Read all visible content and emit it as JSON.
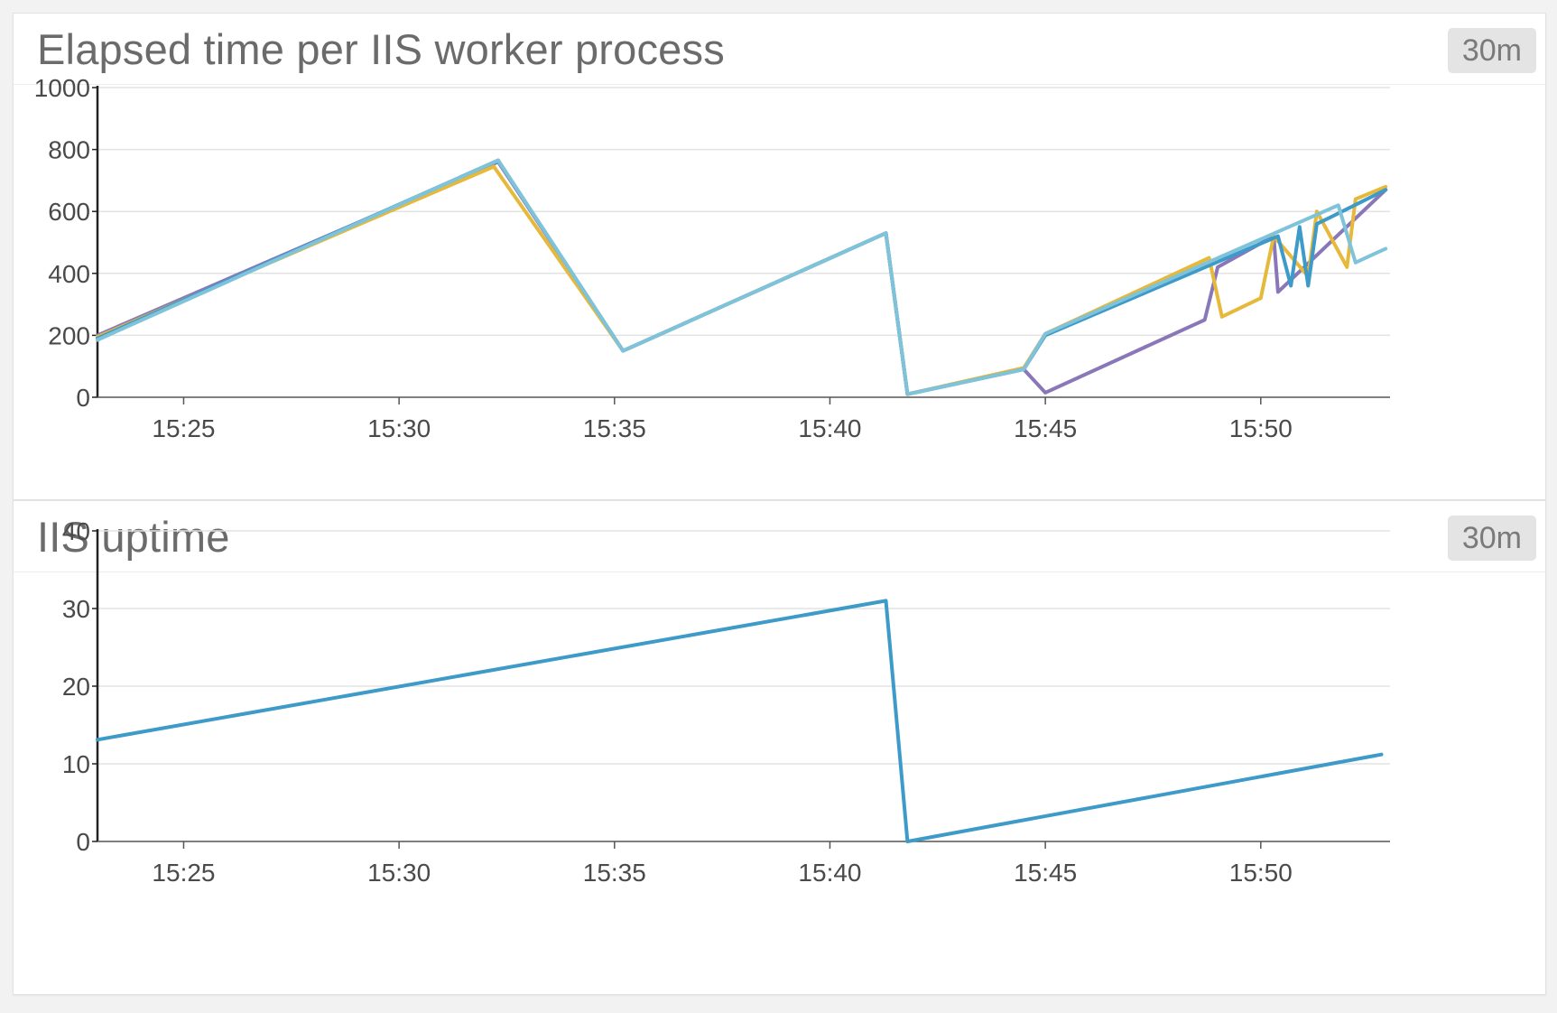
{
  "panels": [
    {
      "title": "Elapsed time per IIS worker process",
      "timeframe": "30m"
    },
    {
      "title": "IIS uptime",
      "timeframe": "30m"
    }
  ],
  "chart_data": [
    {
      "type": "line",
      "title": "Elapsed time per IIS worker process",
      "xlabel": "",
      "ylabel": "",
      "x_range": [
        "15:23",
        "15:53"
      ],
      "xticks": [
        "15:25",
        "15:30",
        "15:35",
        "15:40",
        "15:45",
        "15:50"
      ],
      "ylim": [
        0,
        1000
      ],
      "yticks": [
        0,
        200,
        400,
        600,
        800,
        1000
      ],
      "grid": true,
      "series": [
        {
          "color": "#8a77b8",
          "x": [
            "15:23",
            "15:32.3",
            "15:35.2",
            "15:41.3",
            "15:41.8",
            "15:44.5",
            "15:45",
            "15:48.7",
            "15:49",
            "15:50.3",
            "15:50.4",
            "15:52.9"
          ],
          "values": [
            200,
            760,
            150,
            530,
            10,
            90,
            15,
            250,
            420,
            520,
            340,
            670
          ]
        },
        {
          "color": "#e6b93a",
          "x": [
            "15:23",
            "15:32.2",
            "15:35.2",
            "15:41.3",
            "15:41.8",
            "15:44.5",
            "15:45",
            "15:48.8",
            "15:49.1",
            "15:50",
            "15:50.3",
            "15:51.1",
            "15:51.3",
            "15:52.0",
            "15:52.2",
            "15:52.9"
          ],
          "values": [
            195,
            745,
            150,
            530,
            10,
            95,
            205,
            450,
            260,
            320,
            520,
            390,
            600,
            420,
            640,
            680
          ]
        },
        {
          "color": "#3d9ac9",
          "x": [
            "15:23",
            "15:32.3",
            "15:35.2",
            "15:41.3",
            "15:41.8",
            "15:44.5",
            "15:45",
            "15:50.4",
            "15:50.7",
            "15:50.9",
            "15:51.1",
            "15:51.3",
            "15:51.6",
            "15:52.9"
          ],
          "values": [
            190,
            765,
            150,
            530,
            10,
            90,
            200,
            520,
            360,
            550,
            360,
            560,
            580,
            670
          ]
        },
        {
          "color": "#7fc3da",
          "x": [
            "15:23",
            "15:32.3",
            "15:35.2",
            "15:41.3",
            "15:41.8",
            "15:44.5",
            "15:45",
            "15:51.8",
            "15:52.2",
            "15:52.9"
          ],
          "values": [
            185,
            765,
            150,
            530,
            10,
            90,
            205,
            620,
            435,
            480
          ]
        }
      ]
    },
    {
      "type": "line",
      "title": "IIS uptime",
      "xlabel": "",
      "ylabel": "",
      "x_range": [
        "15:23",
        "15:53"
      ],
      "xticks": [
        "15:25",
        "15:30",
        "15:35",
        "15:40",
        "15:45",
        "15:50"
      ],
      "ylim": [
        0,
        40
      ],
      "yticks": [
        0,
        10,
        20,
        30,
        40
      ],
      "grid": true,
      "series": [
        {
          "color": "#3d9ac9",
          "x": [
            "15:23",
            "15:41.3",
            "15:41.8",
            "15:52.8"
          ],
          "values": [
            13.1,
            31.0,
            0,
            11.2
          ]
        }
      ]
    }
  ]
}
